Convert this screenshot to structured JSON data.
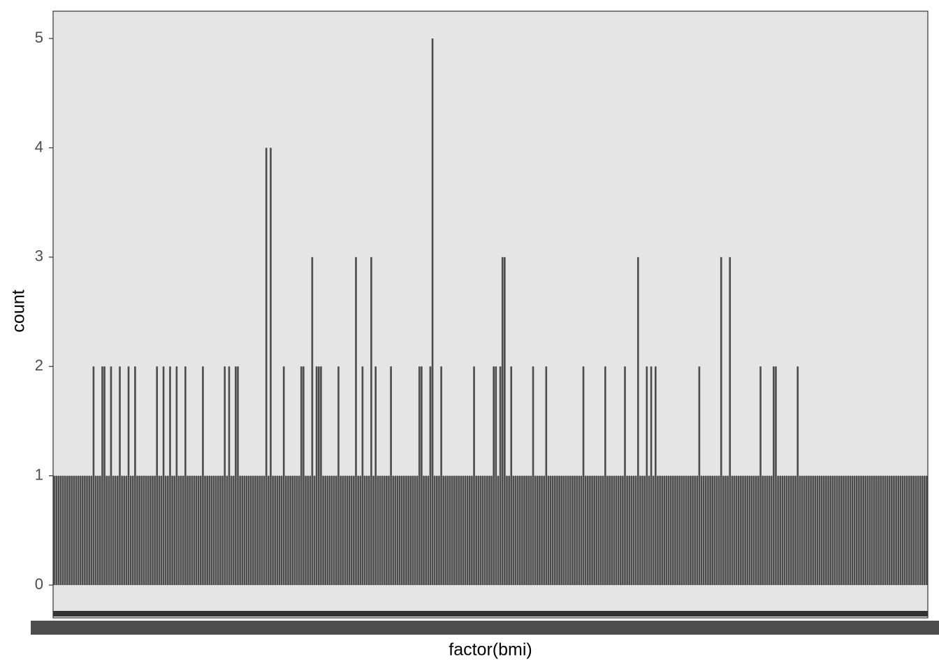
{
  "chart_data": {
    "type": "bar",
    "x_label": "factor(bmi)",
    "y_label": "count",
    "color": "#4d4d4d",
    "background": "#e5e5e5",
    "grid": false,
    "ylim": [
      -0.3,
      5.25
    ],
    "yticks": [
      0,
      1,
      2,
      3,
      4,
      5
    ],
    "values": [
      1,
      1,
      1,
      1,
      1,
      1,
      1,
      1,
      1,
      1,
      1,
      1,
      1,
      1,
      1,
      1,
      1,
      1,
      2,
      1,
      1,
      1,
      2,
      2,
      1,
      1,
      2,
      1,
      1,
      1,
      2,
      1,
      1,
      1,
      2,
      1,
      1,
      2,
      1,
      1,
      1,
      1,
      1,
      1,
      1,
      1,
      1,
      2,
      1,
      1,
      2,
      1,
      1,
      2,
      1,
      1,
      2,
      1,
      1,
      1,
      2,
      1,
      1,
      1,
      1,
      1,
      1,
      1,
      2,
      1,
      1,
      1,
      1,
      1,
      1,
      1,
      1,
      1,
      2,
      1,
      2,
      1,
      1,
      2,
      2,
      1,
      1,
      1,
      1,
      1,
      1,
      1,
      1,
      1,
      1,
      1,
      1,
      4,
      1,
      4,
      1,
      1,
      1,
      1,
      1,
      2,
      1,
      1,
      1,
      1,
      1,
      1,
      1,
      2,
      2,
      1,
      1,
      1,
      3,
      1,
      2,
      2,
      2,
      1,
      1,
      1,
      1,
      1,
      1,
      1,
      2,
      1,
      1,
      1,
      1,
      1,
      1,
      1,
      3,
      1,
      1,
      2,
      1,
      1,
      1,
      3,
      1,
      2,
      1,
      1,
      1,
      1,
      1,
      1,
      2,
      1,
      1,
      1,
      1,
      1,
      1,
      1,
      1,
      1,
      1,
      1,
      1,
      2,
      2,
      1,
      1,
      1,
      2,
      5,
      1,
      1,
      1,
      2,
      1,
      1,
      1,
      1,
      1,
      1,
      1,
      1,
      1,
      1,
      1,
      1,
      1,
      1,
      2,
      1,
      1,
      1,
      1,
      1,
      1,
      1,
      1,
      2,
      2,
      1,
      2,
      3,
      3,
      1,
      1,
      2,
      1,
      1,
      1,
      1,
      1,
      1,
      1,
      1,
      1,
      2,
      1,
      1,
      1,
      1,
      1,
      2,
      1,
      1,
      1,
      1,
      1,
      1,
      1,
      1,
      1,
      1,
      1,
      1,
      1,
      1,
      1,
      1,
      2,
      1,
      1,
      1,
      1,
      1,
      1,
      1,
      1,
      1,
      2,
      1,
      1,
      1,
      1,
      1,
      1,
      1,
      1,
      2,
      1,
      1,
      1,
      1,
      1,
      3,
      1,
      1,
      1,
      2,
      1,
      2,
      1,
      2,
      1,
      1,
      1,
      1,
      1,
      1,
      1,
      1,
      1,
      1,
      1,
      1,
      1,
      1,
      1,
      1,
      1,
      1,
      1,
      2,
      1,
      1,
      1,
      1,
      1,
      1,
      1,
      1,
      1,
      3,
      1,
      1,
      1,
      3,
      1,
      1,
      1,
      1,
      1,
      1,
      1,
      1,
      1,
      1,
      1,
      1,
      1,
      2,
      1,
      1,
      1,
      1,
      1,
      2,
      2,
      1,
      1,
      1,
      1,
      1,
      1,
      1,
      1,
      1,
      2,
      1,
      1,
      1,
      1,
      1,
      1,
      1,
      1,
      1,
      1,
      1,
      1,
      1,
      1,
      1,
      1,
      1,
      1,
      1,
      1,
      1,
      1,
      1,
      1,
      1,
      1,
      1,
      1,
      1,
      1,
      1,
      1,
      1,
      1,
      1,
      1,
      1,
      1,
      1,
      1,
      1,
      1,
      1,
      1,
      1,
      1,
      1,
      1,
      1,
      1,
      1,
      1,
      1,
      1,
      1,
      1,
      1,
      1,
      1
    ]
  }
}
